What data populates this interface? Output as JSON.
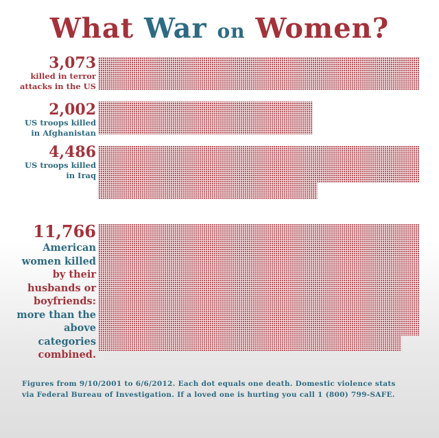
{
  "title": {
    "part1": "What",
    "part2": "War",
    "part3": "on",
    "part4": "Women?"
  },
  "colors": {
    "red": "#a3323a",
    "blue": "#2e6b82",
    "dot": "#b2555d"
  },
  "chart_data": {
    "type": "bar",
    "orientation": "horizontal",
    "unit_note": "Each dot equals one death",
    "categories": [
      {
        "value_label": "3,073",
        "label_lines": [
          "killed in terror",
          "attacks in the US"
        ],
        "label_color": "red"
      },
      {
        "value_label": "2,002",
        "label_lines": [
          "US troops killed",
          "in Afghanistan"
        ],
        "label_color": "blue"
      },
      {
        "value_label": "4,486",
        "label_lines": [
          "US troops killed",
          "in Iraq"
        ],
        "label_color": "blue"
      },
      {
        "value_label": "11,766",
        "label_lines": [
          "American",
          "women killed",
          "by their",
          "husbands or",
          "boyfriends:",
          "more than the",
          "above",
          "categories",
          "combined."
        ],
        "label_color": "mixed"
      }
    ],
    "values": [
      3073,
      2002,
      4486,
      11766
    ]
  },
  "footer": {
    "line1": "Figures from 9/10/2001 to 6/6/2012. Each dot equals one death. Domestic violence stats",
    "line2": "via Federal Bureau of Investigation. If a loved one is hurting you call 1 (800) 799-SAFE."
  }
}
